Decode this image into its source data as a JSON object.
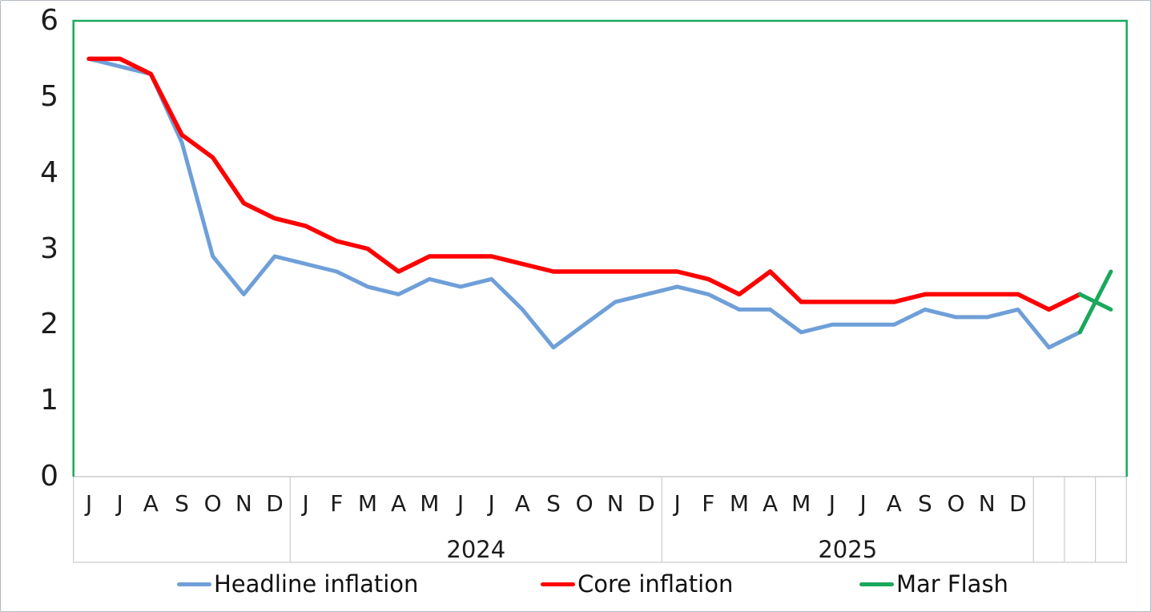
{
  "figure": {
    "background": "#ffffff",
    "outer_border_color": "#b3bac1"
  },
  "axes": {
    "y_tick_labels": [
      "0",
      "1",
      "2",
      "3",
      "4",
      "5",
      "6"
    ],
    "y_min": 0,
    "y_max": 6,
    "axis_line_color": "#cccccc",
    "plot_border_color": "#1aa85c",
    "tick_label_color": "#1c1c1c"
  },
  "x_axis": {
    "month_letters": [
      "J",
      "J",
      "A",
      "S",
      "O",
      "N",
      "D",
      "J",
      "F",
      "M",
      "A",
      "M",
      "J",
      "J",
      "A",
      "S",
      "O",
      "N",
      "D",
      "J",
      "F",
      "M",
      "A",
      "M",
      "J",
      "J",
      "A",
      "S",
      "O",
      "N",
      "D",
      "",
      "",
      ""
    ],
    "year_groups": [
      {
        "label": "",
        "start": 0,
        "end": 6
      },
      {
        "label": "2024",
        "start": 7,
        "end": 18
      },
      {
        "label": "2025",
        "start": 19,
        "end": 30
      },
      {
        "label": "",
        "start": 31,
        "end": 33
      }
    ]
  },
  "chart_data": {
    "type": "line",
    "title": "",
    "xlabel": "",
    "ylabel": "",
    "ylim": [
      0,
      6
    ],
    "grid": false,
    "legend_position": "bottom",
    "categories": [
      "J",
      "J",
      "A",
      "S",
      "O",
      "N",
      "D",
      "J",
      "F",
      "M",
      "A",
      "M",
      "J",
      "J",
      "A",
      "S",
      "O",
      "N",
      "D",
      "J",
      "F",
      "M",
      "A",
      "M",
      "J",
      "J",
      "A",
      "S",
      "O",
      "N",
      "D",
      "",
      "",
      ""
    ],
    "series": [
      {
        "name": "Headline inflation",
        "color": "#6f9fd8",
        "values": [
          5.5,
          5.4,
          5.3,
          4.4,
          2.9,
          2.4,
          2.9,
          2.8,
          2.7,
          2.5,
          2.4,
          2.6,
          2.5,
          2.6,
          2.2,
          1.7,
          2.0,
          2.3,
          2.4,
          2.5,
          2.4,
          2.2,
          2.2,
          1.9,
          2.0,
          2.0,
          2.0,
          2.2,
          2.1,
          2.1,
          2.2,
          1.7,
          1.9
        ]
      },
      {
        "name": "Core inflation",
        "color": "#ff0000",
        "values": [
          5.5,
          5.5,
          5.3,
          4.5,
          4.2,
          3.6,
          3.4,
          3.3,
          3.1,
          3.0,
          2.7,
          2.9,
          2.9,
          2.9,
          2.8,
          2.7,
          2.7,
          2.7,
          2.7,
          2.7,
          2.6,
          2.4,
          2.7,
          2.3,
          2.3,
          2.3,
          2.3,
          2.4,
          2.4,
          2.4,
          2.4,
          2.2,
          2.4
        ]
      }
    ],
    "flash": {
      "name": "Mar Flash",
      "color": "#1aa85c",
      "index": 33,
      "headline_value": 2.7,
      "core_value": 2.2
    }
  },
  "legend": {
    "items": [
      {
        "label": "Headline inflation",
        "color": "#6f9fd8"
      },
      {
        "label": "Core inflation",
        "color": "#ff0000"
      },
      {
        "label": "Mar Flash",
        "color": "#1aa85c"
      }
    ]
  }
}
